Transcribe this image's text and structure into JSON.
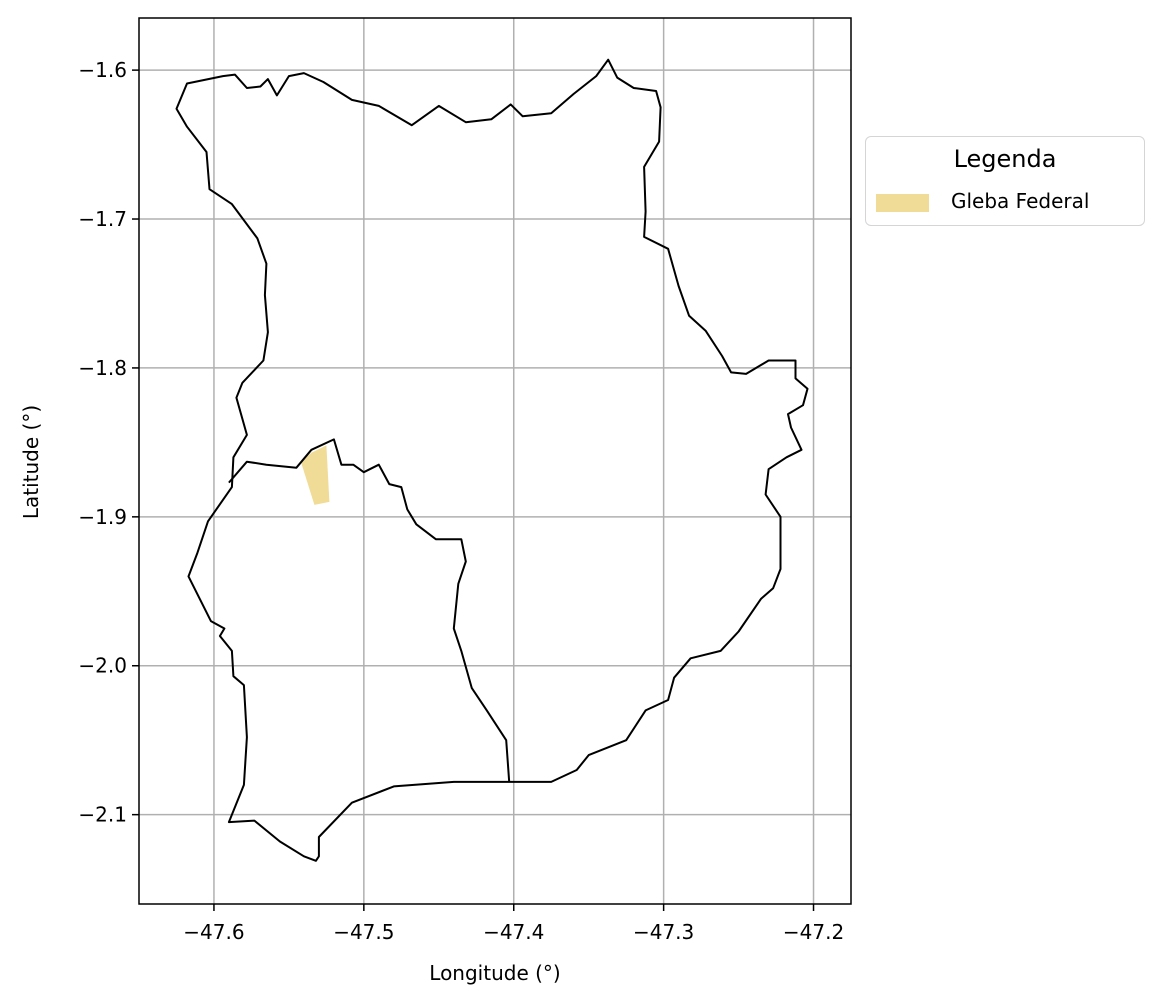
{
  "chart_data": {
    "type": "map",
    "title": "",
    "xlabel": "Longitude (°)",
    "ylabel": "Latitude (°)",
    "xlim": [
      -47.65,
      -47.175
    ],
    "ylim": [
      -2.16,
      -1.565
    ],
    "xticks": [
      -47.6,
      -47.5,
      -47.4,
      -47.3,
      -47.2
    ],
    "xtick_labels": [
      "−47.6",
      "−47.5",
      "−47.4",
      "−47.3",
      "−47.2"
    ],
    "yticks": [
      -1.6,
      -1.7,
      -1.8,
      -1.9,
      -2.0,
      -2.1
    ],
    "ytick_labels": [
      "−1.6",
      "−1.7",
      "−1.8",
      "−1.9",
      "−2.0",
      "−2.1"
    ],
    "grid": true,
    "legend": {
      "title": "Legenda",
      "placement": "outside-right-top",
      "entries": [
        {
          "label": "Gleba Federal",
          "color": "#f0dc96"
        }
      ]
    },
    "boundaries": [
      {
        "fill": "none",
        "stroke": "#000000",
        "coords": [
          [
            -47.594,
            -1.604
          ],
          [
            -47.586,
            -1.603
          ],
          [
            -47.578,
            -1.612
          ],
          [
            -47.569,
            -1.611
          ],
          [
            -47.564,
            -1.606
          ],
          [
            -47.558,
            -1.617
          ],
          [
            -47.55,
            -1.604
          ],
          [
            -47.54,
            -1.602
          ],
          [
            -47.527,
            -1.608
          ],
          [
            -47.508,
            -1.62
          ],
          [
            -47.49,
            -1.624
          ],
          [
            -47.468,
            -1.637
          ],
          [
            -47.45,
            -1.624
          ],
          [
            -47.432,
            -1.635
          ],
          [
            -47.415,
            -1.633
          ],
          [
            -47.402,
            -1.623
          ],
          [
            -47.394,
            -1.631
          ],
          [
            -47.375,
            -1.629
          ],
          [
            -47.36,
            -1.616
          ],
          [
            -47.345,
            -1.604
          ],
          [
            -47.337,
            -1.593
          ],
          [
            -47.331,
            -1.605
          ],
          [
            -47.32,
            -1.612
          ],
          [
            -47.305,
            -1.614
          ],
          [
            -47.302,
            -1.625
          ],
          [
            -47.303,
            -1.648
          ],
          [
            -47.313,
            -1.665
          ],
          [
            -47.312,
            -1.695
          ],
          [
            -47.313,
            -1.712
          ],
          [
            -47.297,
            -1.72
          ],
          [
            -47.29,
            -1.745
          ],
          [
            -47.283,
            -1.765
          ],
          [
            -47.272,
            -1.775
          ],
          [
            -47.261,
            -1.792
          ],
          [
            -47.255,
            -1.803
          ],
          [
            -47.245,
            -1.804
          ],
          [
            -47.23,
            -1.795
          ],
          [
            -47.212,
            -1.795
          ],
          [
            -47.212,
            -1.807
          ],
          [
            -47.204,
            -1.814
          ],
          [
            -47.207,
            -1.825
          ],
          [
            -47.217,
            -1.831
          ],
          [
            -47.215,
            -1.84
          ],
          [
            -47.208,
            -1.855
          ],
          [
            -47.218,
            -1.86
          ],
          [
            -47.23,
            -1.868
          ],
          [
            -47.232,
            -1.885
          ],
          [
            -47.222,
            -1.9
          ],
          [
            -47.222,
            -1.935
          ],
          [
            -47.227,
            -1.948
          ],
          [
            -47.235,
            -1.955
          ],
          [
            -47.25,
            -1.977
          ],
          [
            -47.262,
            -1.99
          ],
          [
            -47.282,
            -1.995
          ],
          [
            -47.293,
            -2.008
          ],
          [
            -47.297,
            -2.023
          ],
          [
            -47.312,
            -2.03
          ],
          [
            -47.325,
            -2.05
          ],
          [
            -47.35,
            -2.06
          ],
          [
            -47.358,
            -2.07
          ],
          [
            -47.375,
            -2.078
          ],
          [
            -47.4,
            -2.078
          ],
          [
            -47.44,
            -2.078
          ],
          [
            -47.48,
            -2.081
          ],
          [
            -47.508,
            -2.092
          ],
          [
            -47.53,
            -2.115
          ],
          [
            -47.53,
            -2.128
          ],
          [
            -47.532,
            -2.131
          ],
          [
            -47.54,
            -2.128
          ],
          [
            -47.556,
            -2.118
          ],
          [
            -47.573,
            -2.104
          ],
          [
            -47.59,
            -2.105
          ],
          [
            -47.58,
            -2.08
          ],
          [
            -47.578,
            -2.048
          ],
          [
            -47.58,
            -2.013
          ],
          [
            -47.587,
            -2.007
          ],
          [
            -47.588,
            -1.99
          ],
          [
            -47.596,
            -1.98
          ],
          [
            -47.593,
            -1.975
          ],
          [
            -47.602,
            -1.97
          ],
          [
            -47.617,
            -1.94
          ],
          [
            -47.611,
            -1.924
          ],
          [
            -47.604,
            -1.903
          ],
          [
            -47.588,
            -1.88
          ],
          [
            -47.587,
            -1.86
          ],
          [
            -47.578,
            -1.845
          ],
          [
            -47.585,
            -1.82
          ],
          [
            -47.581,
            -1.81
          ],
          [
            -47.567,
            -1.795
          ],
          [
            -47.564,
            -1.776
          ],
          [
            -47.566,
            -1.751
          ],
          [
            -47.565,
            -1.73
          ],
          [
            -47.571,
            -1.713
          ],
          [
            -47.588,
            -1.69
          ],
          [
            -47.603,
            -1.68
          ],
          [
            -47.605,
            -1.655
          ],
          [
            -47.618,
            -1.638
          ],
          [
            -47.625,
            -1.626
          ],
          [
            -47.618,
            -1.609
          ],
          [
            -47.594,
            -1.604
          ]
        ]
      },
      {
        "fill": "none",
        "stroke": "#000000",
        "coords": [
          [
            -47.59,
            -1.877
          ],
          [
            -47.578,
            -1.863
          ],
          [
            -47.565,
            -1.865
          ],
          [
            -47.545,
            -1.867
          ],
          [
            -47.535,
            -1.855
          ],
          [
            -47.52,
            -1.848
          ],
          [
            -47.515,
            -1.865
          ],
          [
            -47.507,
            -1.865
          ],
          [
            -47.5,
            -1.87
          ],
          [
            -47.49,
            -1.865
          ],
          [
            -47.483,
            -1.878
          ],
          [
            -47.475,
            -1.88
          ],
          [
            -47.471,
            -1.895
          ],
          [
            -47.465,
            -1.905
          ],
          [
            -47.452,
            -1.915
          ],
          [
            -47.435,
            -1.915
          ],
          [
            -47.432,
            -1.93
          ],
          [
            -47.437,
            -1.945
          ],
          [
            -47.44,
            -1.975
          ],
          [
            -47.435,
            -1.99
          ],
          [
            -47.428,
            -2.015
          ],
          [
            -47.418,
            -2.03
          ],
          [
            -47.405,
            -2.05
          ],
          [
            -47.403,
            -2.078
          ]
        ]
      }
    ],
    "areas": [
      {
        "label": "Gleba Federal",
        "fill": "#f0dc96",
        "coords": [
          [
            -47.542,
            -1.863
          ],
          [
            -47.535,
            -1.857
          ],
          [
            -47.525,
            -1.852
          ],
          [
            -47.523,
            -1.89
          ],
          [
            -47.533,
            -1.892
          ],
          [
            -47.542,
            -1.863
          ]
        ]
      }
    ]
  }
}
